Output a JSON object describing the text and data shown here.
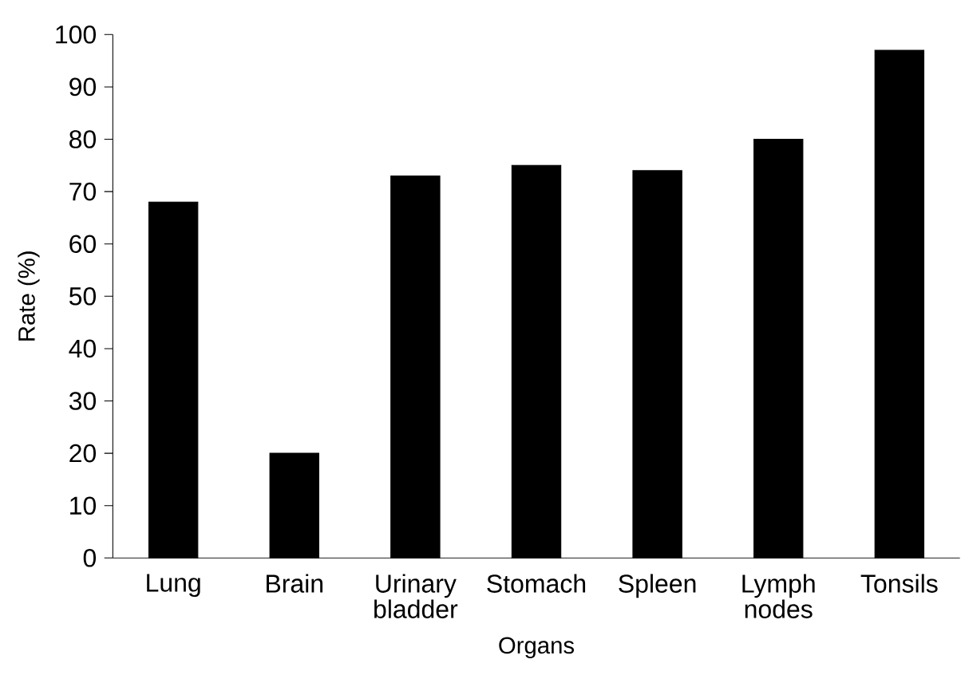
{
  "chart_data": {
    "type": "bar",
    "xlabel": "Organs",
    "ylabel": "Rate (%)",
    "categories": [
      "Lung",
      "Brain",
      "Urinary bladder",
      "Stomach",
      "Spleen",
      "Lymph nodes",
      "Tonsils"
    ],
    "values": [
      68,
      20,
      73,
      75,
      74,
      80,
      97
    ],
    "color": "#000000",
    "ylim": [
      0,
      100
    ],
    "yticks": [
      0,
      10,
      20,
      30,
      40,
      50,
      60,
      70,
      80,
      90,
      100
    ]
  }
}
